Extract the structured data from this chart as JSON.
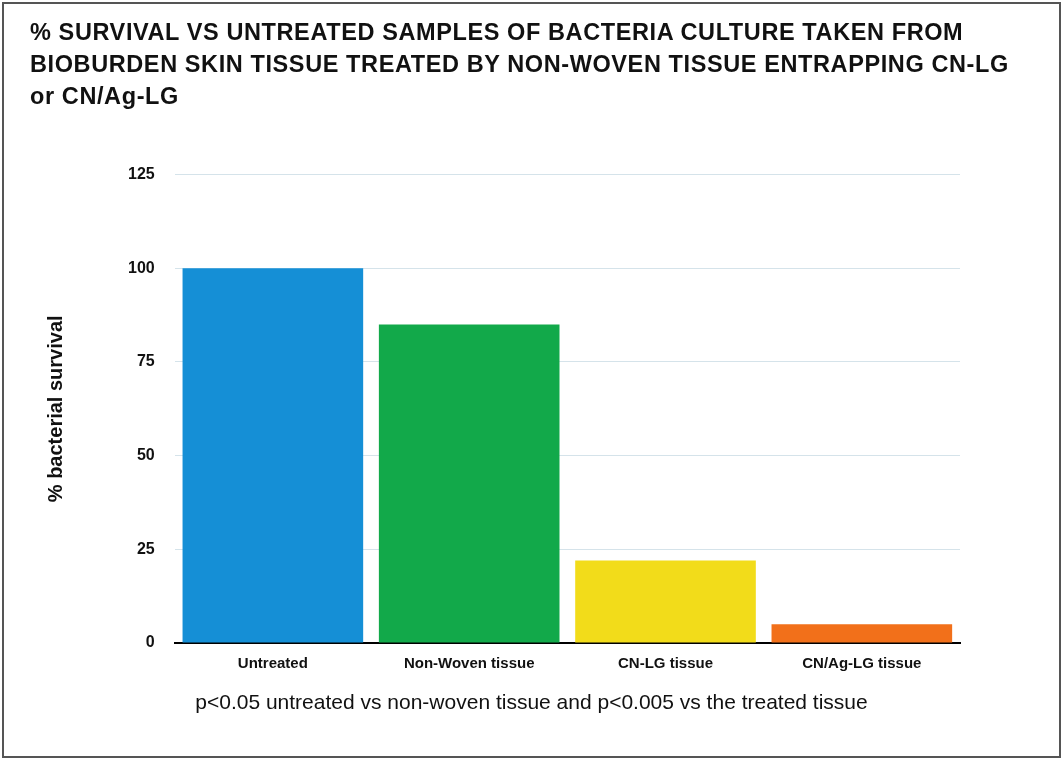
{
  "chart_data": {
    "type": "bar",
    "title": "% SURVIVAL VS UNTREATED SAMPLES OF BACTERIA CULTURE TAKEN FROM BIOBURDEN SKIN TISSUE TREATED BY NON-WOVEN TISSUE ENTRAPPING CN-LG or CN/Ag-LG",
    "ylabel": "% bacterial survival",
    "categories": [
      "Untreated",
      "Non-Woven tissue",
      "CN-LG tissue",
      "CN/Ag-LG tissue"
    ],
    "values": [
      100,
      85,
      22,
      5
    ],
    "colors": [
      "#158fd6",
      "#12a94a",
      "#f2dc1a",
      "#f2701a"
    ],
    "ylim": [
      0,
      125
    ],
    "yticks": [
      0,
      25,
      50,
      75,
      100,
      125
    ],
    "grid": "y",
    "annotations": [
      "p<0.05 untreated vs non-woven tissue and p<0.005 vs the treated tissue"
    ]
  }
}
